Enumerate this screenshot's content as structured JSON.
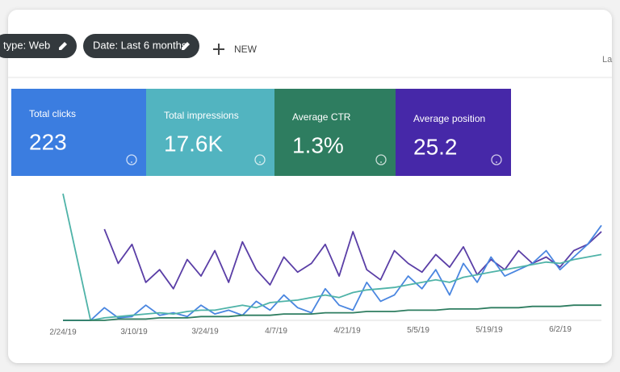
{
  "toolbar": {
    "chips": [
      "type: Web",
      "Date: Last 6 months"
    ],
    "new_button": "NEW",
    "right_text": "La"
  },
  "metrics": [
    {
      "title": "Total clicks",
      "value": "223",
      "color": "#3b7de0"
    },
    {
      "title": "Total impressions",
      "value": "17.6K",
      "color": "#52b4c0"
    },
    {
      "title": "Average CTR",
      "value": "1.3%",
      "color": "#2e7d60"
    },
    {
      "title": "Average position",
      "value": "25.2",
      "color": "#4628a8"
    }
  ],
  "chart_data": {
    "type": "line",
    "x_tick_labels": [
      "2/24/19",
      "3/10/19",
      "3/24/19",
      "4/7/19",
      "4/21/19",
      "5/5/19",
      "5/19/19",
      "6/2/19"
    ],
    "series": [
      {
        "color": "#5a3ea6",
        "values": [
          null,
          null,
          null,
          72,
          45,
          60,
          30,
          40,
          25,
          48,
          35,
          55,
          30,
          62,
          40,
          28,
          50,
          38,
          45,
          60,
          35,
          70,
          40,
          32,
          55,
          45,
          38,
          52,
          42,
          58,
          36,
          48,
          40,
          55,
          45,
          50,
          42,
          55,
          60,
          70
        ]
      },
      {
        "color": "#4a86e0",
        "values": [
          0,
          0,
          0,
          10,
          2,
          3,
          12,
          4,
          6,
          3,
          12,
          5,
          8,
          4,
          15,
          8,
          20,
          10,
          6,
          25,
          12,
          8,
          30,
          15,
          20,
          35,
          25,
          40,
          20,
          45,
          30,
          50,
          35,
          40,
          45,
          55,
          40,
          50,
          60,
          75
        ]
      },
      {
        "color": "#4fb3a8",
        "values": [
          100,
          50,
          0,
          2,
          3,
          4,
          5,
          6,
          5,
          7,
          8,
          8,
          10,
          12,
          10,
          14,
          15,
          16,
          18,
          20,
          18,
          22,
          24,
          25,
          26,
          28,
          30,
          32,
          30,
          34,
          36,
          38,
          40,
          42,
          44,
          46,
          45,
          48,
          50,
          52
        ]
      },
      {
        "color": "#2e7d60",
        "values": [
          0,
          0,
          0,
          0,
          1,
          1,
          1,
          2,
          2,
          2,
          3,
          3,
          3,
          4,
          4,
          4,
          5,
          5,
          5,
          6,
          6,
          6,
          7,
          7,
          7,
          8,
          8,
          8,
          9,
          9,
          9,
          10,
          10,
          10,
          11,
          11,
          11,
          12,
          12,
          12
        ]
      }
    ]
  }
}
